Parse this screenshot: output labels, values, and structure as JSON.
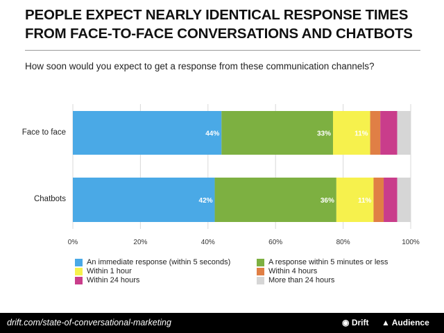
{
  "chart_data": {
    "type": "bar",
    "orientation": "horizontal",
    "stacked": true,
    "title": "PEOPLE EXPECT NEARLY IDENTICAL RESPONSE TIMES FROM FACE-TO-FACE CONVERSATIONS AND CHATBOTS",
    "subtitle": "How soon would you expect to get a response from these communication channels?",
    "categories": [
      "Face to face",
      "Chatbots"
    ],
    "xlim": [
      0,
      100
    ],
    "xticks": [
      "0%",
      "20%",
      "40%",
      "60%",
      "80%",
      "100%"
    ],
    "grid": true,
    "legend_position": "bottom",
    "series": [
      {
        "name": "An immediate response (within 5 seconds)",
        "color": "#4aa9e6",
        "values": [
          44,
          42
        ],
        "labels": [
          "44%",
          "42%"
        ]
      },
      {
        "name": "A response within 5 minutes or less",
        "color": "#7db041",
        "values": [
          33,
          36
        ],
        "labels": [
          "33%",
          "36%"
        ]
      },
      {
        "name": "Within 1 hour",
        "color": "#f6f14d",
        "values": [
          11,
          11
        ],
        "labels": [
          "11%",
          "11%"
        ]
      },
      {
        "name": "Within 4 hours",
        "color": "#e07f45",
        "values": [
          3,
          3
        ],
        "labels": [
          "",
          ""
        ]
      },
      {
        "name": "Within 24 hours",
        "color": "#c93d8b",
        "values": [
          5,
          4
        ],
        "labels": [
          "",
          ""
        ]
      },
      {
        "name": "More than 24 hours",
        "color": "#d6d6d6",
        "values": [
          4,
          4
        ],
        "labels": [
          "",
          ""
        ]
      }
    ]
  },
  "footer": {
    "url": "drift.com/state-of-conversational-marketing",
    "brand1": "Drift",
    "brand2": "Audience"
  }
}
